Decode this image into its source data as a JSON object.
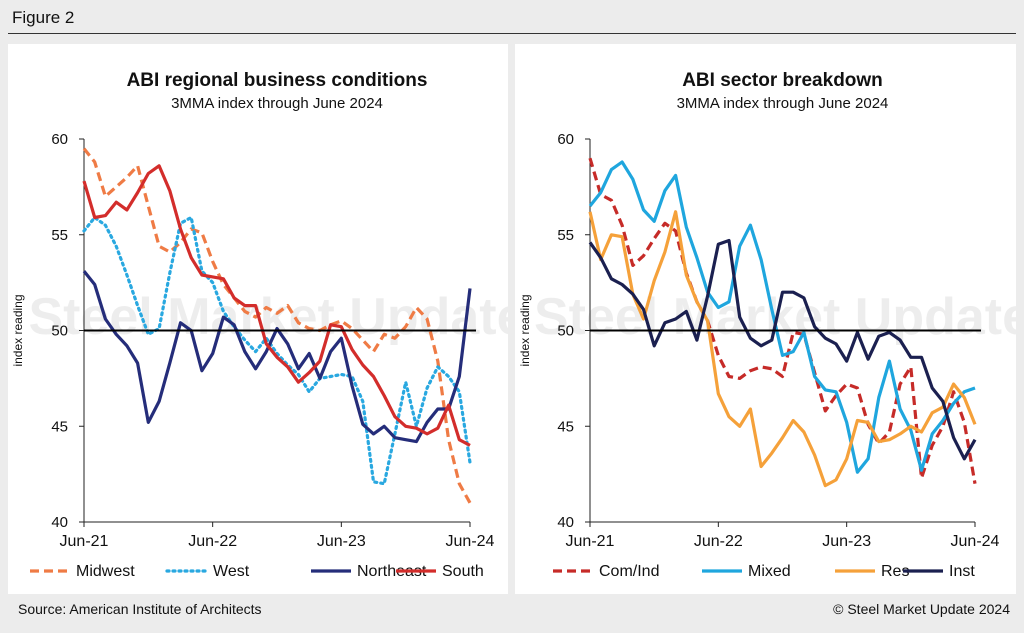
{
  "figure_label": "Figure 2",
  "source": "Source: American Institute of Architects",
  "copyright": "© Steel Market Update 2024",
  "watermark": "Steel Market Update",
  "chart_data": [
    {
      "type": "line",
      "title": "ABI regional business conditions",
      "subtitle": "3MMA index through June 2024",
      "ylabel": "index reading",
      "xlabel": "",
      "ylim": [
        40,
        60
      ],
      "yticks": [
        40,
        45,
        50,
        55,
        60
      ],
      "xlim": [
        0,
        36
      ],
      "xticks": [
        {
          "x": 0,
          "label": "Jun-21"
        },
        {
          "x": 12,
          "label": "Jun-22"
        },
        {
          "x": 24,
          "label": "Jun-23"
        },
        {
          "x": 36,
          "label": "Jun-24"
        }
      ],
      "reference_line": 50,
      "legend_position": "bottom",
      "series": [
        {
          "name": "Midwest",
          "color": "#ef7b45",
          "dash": "dashed",
          "values": [
            59.5,
            58.8,
            57.0,
            57.5,
            58.0,
            58.6,
            56.5,
            54.4,
            54.1,
            54.6,
            55.3,
            55.1,
            53.6,
            52.4,
            51.7,
            51.0,
            50.7,
            51.2,
            50.9,
            51.3,
            50.4,
            50.1,
            50.0,
            50.3,
            50.5,
            50.1,
            49.5,
            48.9,
            49.8,
            49.6,
            50.2,
            51.2,
            50.6,
            48.4,
            44.3,
            42.0,
            41.0
          ]
        },
        {
          "name": "West",
          "color": "#29a8e0",
          "dash": "dotted",
          "values": [
            55.2,
            55.9,
            55.5,
            54.4,
            52.9,
            51.3,
            49.8,
            50.1,
            53.0,
            55.6,
            55.9,
            53.1,
            52.5,
            51.0,
            50.2,
            49.5,
            48.9,
            49.6,
            48.8,
            48.2,
            47.7,
            46.8,
            47.5,
            47.6,
            47.7,
            47.6,
            46.3,
            42.1,
            42.0,
            44.6,
            47.3,
            45.0,
            47.0,
            48.1,
            47.6,
            46.8,
            43.1
          ]
        },
        {
          "name": "Northeast",
          "color": "#252d7a",
          "dash": "solid",
          "values": [
            53.1,
            52.4,
            50.6,
            49.8,
            49.2,
            48.3,
            45.2,
            46.3,
            48.3,
            50.4,
            50.0,
            47.9,
            48.8,
            50.7,
            50.3,
            48.9,
            48.0,
            48.9,
            50.1,
            49.3,
            48.0,
            48.8,
            47.5,
            48.9,
            49.6,
            47.1,
            45.1,
            44.6,
            45.0,
            44.4,
            44.3,
            44.2,
            45.2,
            45.9,
            45.9,
            47.6,
            52.2
          ]
        },
        {
          "name": "South",
          "color": "#d32d2b",
          "dash": "solid",
          "values": [
            57.8,
            55.9,
            56.0,
            56.7,
            56.3,
            57.2,
            58.2,
            58.6,
            57.3,
            55.3,
            53.8,
            52.9,
            52.8,
            52.7,
            51.7,
            51.3,
            51.3,
            49.3,
            48.6,
            48.1,
            47.3,
            47.8,
            48.4,
            50.3,
            50.2,
            49.0,
            48.2,
            47.6,
            46.6,
            45.5,
            45.0,
            44.9,
            44.6,
            44.9,
            46.1,
            44.3,
            44.0
          ]
        }
      ]
    },
    {
      "type": "line",
      "title": "ABI sector breakdown",
      "subtitle": "3MMA index through June 2024",
      "ylabel": "index reading",
      "xlabel": "",
      "ylim": [
        40,
        60
      ],
      "yticks": [
        40,
        45,
        50,
        55,
        60
      ],
      "xlim": [
        0,
        36
      ],
      "xticks": [
        {
          "x": 0,
          "label": "Jun-21"
        },
        {
          "x": 12,
          "label": "Jun-22"
        },
        {
          "x": 24,
          "label": "Jun-23"
        },
        {
          "x": 36,
          "label": "Jun-24"
        }
      ],
      "reference_line": 50,
      "legend_position": "bottom",
      "series": [
        {
          "name": "Com/Ind",
          "color": "#c62b28",
          "dash": "dashed",
          "values": [
            59.0,
            57.1,
            56.8,
            55.5,
            53.4,
            53.9,
            54.8,
            55.6,
            55.2,
            53.0,
            51.5,
            50.5,
            48.7,
            47.6,
            47.5,
            47.9,
            48.1,
            48.0,
            47.6,
            49.9,
            49.8,
            47.8,
            45.8,
            46.6,
            47.2,
            47.0,
            45.1,
            44.1,
            44.7,
            47.2,
            48.1,
            42.3,
            44.0,
            45.0,
            46.8,
            45.2,
            42.0
          ]
        },
        {
          "name": "Mixed",
          "color": "#1fa6de",
          "dash": "solid",
          "values": [
            56.5,
            57.2,
            58.4,
            58.8,
            57.9,
            56.3,
            55.7,
            57.3,
            58.1,
            55.4,
            53.8,
            52.0,
            51.2,
            51.5,
            54.4,
            55.5,
            53.7,
            51.1,
            48.7,
            48.9,
            49.9,
            47.6,
            46.9,
            46.8,
            45.2,
            42.6,
            43.3,
            46.5,
            48.4,
            45.9,
            44.8,
            42.7,
            44.6,
            45.3,
            46.2,
            46.8,
            47.0
          ]
        },
        {
          "name": "Res",
          "color": "#f5a13a",
          "dash": "solid",
          "values": [
            56.2,
            53.7,
            55.0,
            54.9,
            51.9,
            50.6,
            52.6,
            54.1,
            56.2,
            52.9,
            51.5,
            50.5,
            46.7,
            45.5,
            45.0,
            45.9,
            42.9,
            43.6,
            44.4,
            45.3,
            44.7,
            43.5,
            41.9,
            42.2,
            43.3,
            45.3,
            45.2,
            44.2,
            44.3,
            44.6,
            45.0,
            44.7,
            45.7,
            46.0,
            47.2,
            46.5,
            45.1
          ]
        },
        {
          "name": "Inst",
          "color": "#1b2050",
          "dash": "solid",
          "values": [
            54.6,
            53.8,
            52.7,
            52.4,
            51.9,
            51.1,
            49.2,
            50.4,
            50.6,
            51.0,
            49.5,
            51.8,
            54.5,
            54.7,
            50.7,
            49.6,
            49.2,
            49.5,
            52.0,
            52.0,
            51.7,
            50.2,
            49.6,
            49.3,
            48.4,
            49.9,
            48.5,
            49.7,
            49.9,
            49.5,
            48.6,
            48.6,
            47.0,
            46.3,
            44.4,
            43.3,
            44.3
          ]
        }
      ]
    }
  ]
}
